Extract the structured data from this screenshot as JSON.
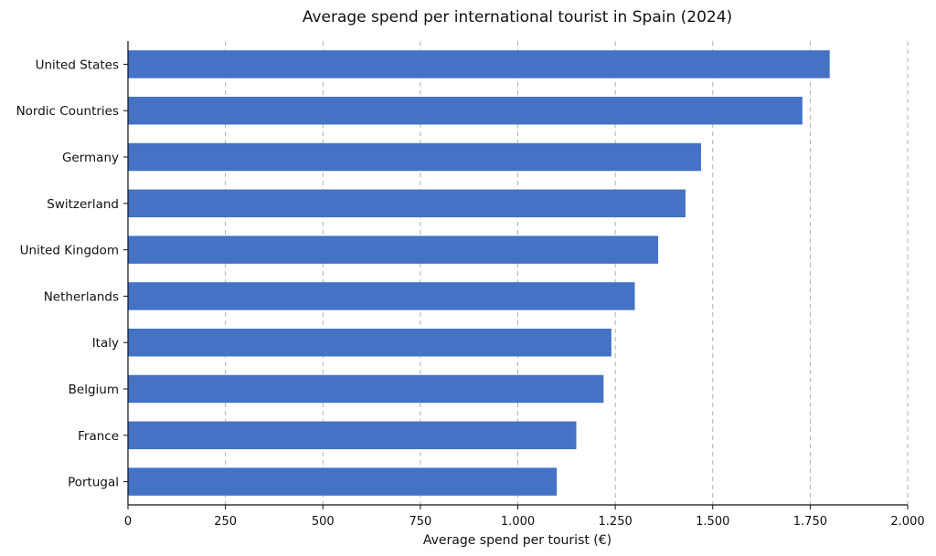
{
  "chart_data": {
    "type": "bar",
    "orientation": "horizontal",
    "title": "Average spend per international tourist in Spain (2024)",
    "xlabel": "Average spend per tourist (€)",
    "ylabel": "",
    "xlim": [
      0,
      2000
    ],
    "xticks": [
      0,
      250,
      500,
      750,
      1000,
      1250,
      1500,
      1750,
      2000
    ],
    "xtick_labels": [
      "0",
      "250",
      "500",
      "750",
      "1.000",
      "1.250",
      "1.500",
      "1.750",
      "2.000"
    ],
    "grid": "vertical dashed",
    "bar_color": "#4472C4",
    "categories": [
      "United States",
      "Nordic Countries",
      "Germany",
      "Switzerland",
      "United Kingdom",
      "Netherlands",
      "Italy",
      "Belgium",
      "France",
      "Portugal"
    ],
    "values": [
      1800,
      1730,
      1470,
      1430,
      1360,
      1300,
      1240,
      1220,
      1150,
      1100
    ]
  }
}
